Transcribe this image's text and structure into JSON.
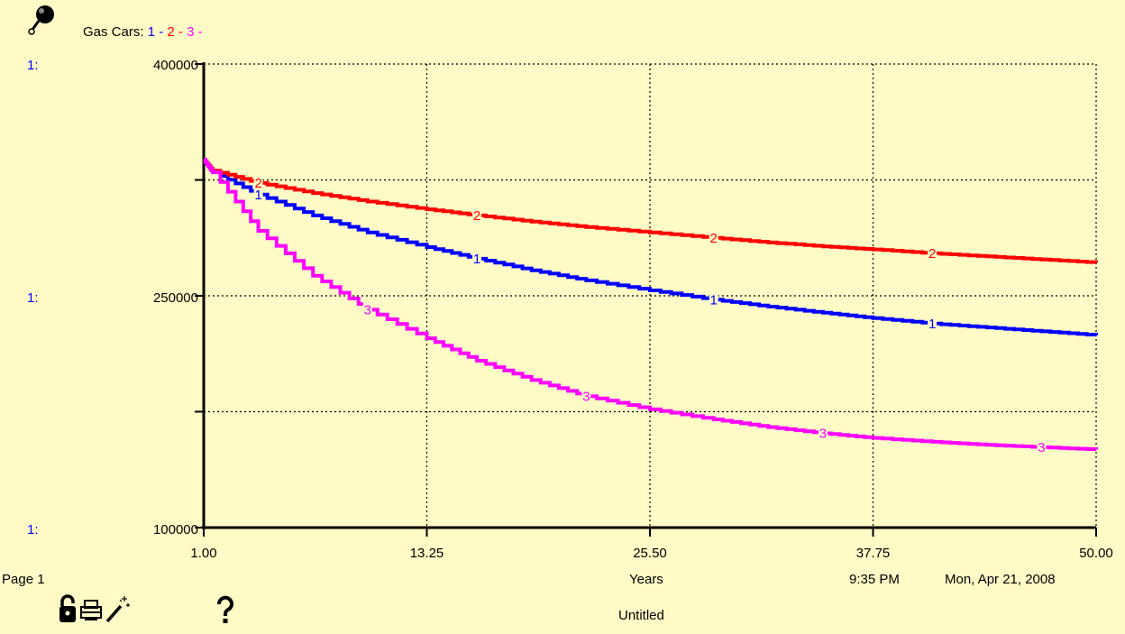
{
  "header": {
    "title_label": "Gas Cars:",
    "legend": [
      {
        "num": "1",
        "sep": "-",
        "color": "#0000ff"
      },
      {
        "num": "2",
        "sep": "-",
        "color": "#ff0000"
      },
      {
        "num": "3",
        "sep": "-",
        "color": "#ff00ff"
      }
    ],
    "axis_prefix": "1:",
    "pin_icon": "pushpin-icon"
  },
  "footer": {
    "page_label": "Page 1",
    "time": "9:35 PM",
    "date": "Mon, Apr 21, 2008",
    "model_name": "Untitled",
    "icons": [
      "lock-icon",
      "printer-icon",
      "magic-wand-icon",
      "help-icon"
    ]
  },
  "chart_data": {
    "type": "line",
    "title": "Gas Cars",
    "xlabel": "Years",
    "ylabel": "",
    "xlim": [
      1,
      50
    ],
    "ylim": [
      100000,
      400000
    ],
    "x_ticks": [
      "1.00",
      "13.25",
      "25.50",
      "37.75",
      "50.00"
    ],
    "y_ticks": [
      "100000",
      "250000",
      "400000"
    ],
    "grid": true,
    "x": [
      1.5,
      4,
      7,
      10,
      13.25,
      16,
      19,
      22,
      25.5,
      29,
      32,
      35,
      37.75,
      41,
      44,
      47,
      50
    ],
    "series": [
      {
        "name": "1",
        "color": "#0000ff",
        "values": [
          330000,
          315500,
          302000,
          291000,
          281500,
          274000,
          266500,
          260000,
          253500,
          247500,
          243000,
          239000,
          235500,
          232000,
          229500,
          227000,
          224500
        ]
      },
      {
        "name": "2",
        "color": "#ff0000",
        "values": [
          331000,
          323000,
          316500,
          311000,
          306000,
          302000,
          298000,
          294500,
          291000,
          287500,
          284500,
          282000,
          280000,
          277500,
          275500,
          273500,
          271500
        ]
      },
      {
        "name": "3",
        "color": "#ff00ff",
        "values": [
          330000,
          292000,
          263000,
          241000,
          222500,
          208000,
          195500,
          185000,
          176500,
          170000,
          165000,
          161000,
          158000,
          155500,
          153500,
          152000,
          150500
        ]
      }
    ],
    "start_value": 338000
  }
}
